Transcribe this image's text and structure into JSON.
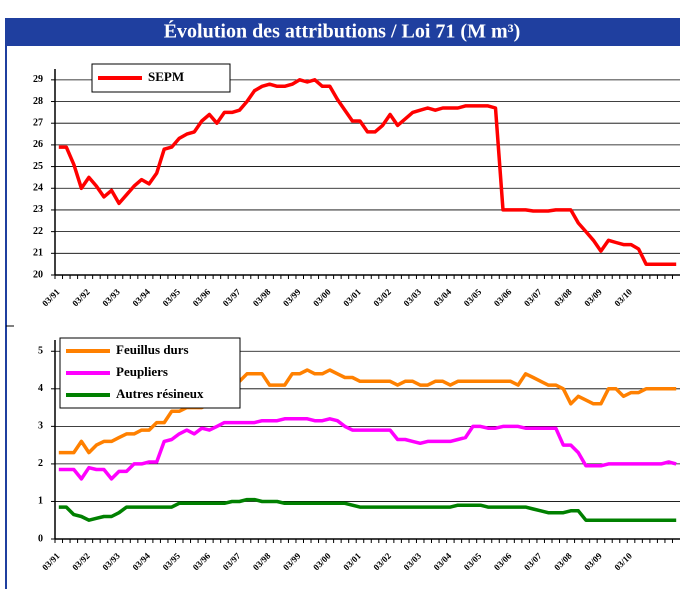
{
  "header": {
    "title": "Évolution des attributions / Loi 71 (M m³)"
  },
  "chart_data": [
    {
      "type": "line",
      "legend": "upper left",
      "grid": true,
      "categories": [
        "03/91",
        null,
        null,
        null,
        "03/92",
        null,
        null,
        null,
        "03/93",
        null,
        null,
        null,
        "03/94",
        null,
        null,
        null,
        "03/95",
        null,
        null,
        null,
        "03/96",
        null,
        null,
        null,
        "03/97",
        null,
        null,
        null,
        "03/98",
        null,
        null,
        null,
        "03/99",
        null,
        null,
        null,
        "03/00",
        null,
        null,
        null,
        "03/01",
        null,
        null,
        null,
        "03/02",
        null,
        null,
        null,
        "03/03",
        null,
        null,
        null,
        "03/04",
        null,
        null,
        null,
        "03/05",
        null,
        null,
        null,
        "03/06",
        null,
        null,
        null,
        "03/07",
        null,
        null,
        null,
        "03/08",
        null,
        null,
        null,
        "03/09",
        null,
        null,
        null,
        "03/10",
        null,
        null,
        null,
        null,
        null,
        null
      ],
      "ylim": [
        20,
        29.5
      ],
      "yticks": [
        20,
        21,
        22,
        23,
        24,
        25,
        26,
        27,
        28,
        29
      ],
      "series": [
        {
          "name": "SEPM",
          "color": "#ff0000",
          "values": [
            25.9,
            25.9,
            25.1,
            24.0,
            24.5,
            24.1,
            23.6,
            23.9,
            23.3,
            23.7,
            24.1,
            24.4,
            24.2,
            24.7,
            25.8,
            25.9,
            26.3,
            26.5,
            26.6,
            27.1,
            27.4,
            27.0,
            27.5,
            27.5,
            27.6,
            28.0,
            28.5,
            28.7,
            28.8,
            28.7,
            28.7,
            28.8,
            29.0,
            28.9,
            29.0,
            28.7,
            28.7,
            28.1,
            27.6,
            27.1,
            27.1,
            26.6,
            26.6,
            26.9,
            27.4,
            26.9,
            27.2,
            27.5,
            27.6,
            27.7,
            27.6,
            27.7,
            27.7,
            27.7,
            27.8,
            27.8,
            27.8,
            27.8,
            27.7,
            23.0,
            23.0,
            23.0,
            23.0,
            22.95,
            22.95,
            22.95,
            23.0,
            23.0,
            23.0,
            22.4,
            22.0,
            21.6,
            21.1,
            21.6,
            21.5,
            21.4,
            21.4,
            21.2,
            20.5,
            20.5,
            20.5,
            20.5,
            20.5
          ]
        }
      ]
    },
    {
      "type": "line",
      "legend": "upper left",
      "grid": true,
      "categories": [
        "03/91",
        null,
        null,
        null,
        "03/92",
        null,
        null,
        null,
        "03/93",
        null,
        null,
        null,
        "03/94",
        null,
        null,
        null,
        "03/95",
        null,
        null,
        null,
        "03/96",
        null,
        null,
        null,
        "03/97",
        null,
        null,
        null,
        "03/98",
        null,
        null,
        null,
        "03/99",
        null,
        null,
        null,
        "03/00",
        null,
        null,
        null,
        "03/01",
        null,
        null,
        null,
        "03/02",
        null,
        null,
        null,
        "03/03",
        null,
        null,
        null,
        "03/04",
        null,
        null,
        null,
        "03/05",
        null,
        null,
        null,
        "03/06",
        null,
        null,
        null,
        "03/07",
        null,
        null,
        null,
        "03/08",
        null,
        null,
        null,
        "03/09",
        null,
        null,
        null,
        "03/10",
        null,
        null,
        null,
        null,
        null,
        null
      ],
      "ylim": [
        0,
        5.3
      ],
      "yticks": [
        0,
        1,
        2,
        3,
        4,
        5
      ],
      "series": [
        {
          "name": "Feuillus durs",
          "color": "#ff8000",
          "values": [
            2.3,
            2.3,
            2.3,
            2.6,
            2.3,
            2.5,
            2.6,
            2.6,
            2.7,
            2.8,
            2.8,
            2.9,
            2.9,
            3.1,
            3.1,
            3.4,
            3.4,
            3.5,
            3.5,
            3.5,
            3.6,
            3.7,
            3.9,
            4.1,
            4.2,
            4.4,
            4.4,
            4.4,
            4.1,
            4.1,
            4.1,
            4.4,
            4.4,
            4.5,
            4.4,
            4.4,
            4.5,
            4.4,
            4.3,
            4.3,
            4.2,
            4.2,
            4.2,
            4.2,
            4.2,
            4.1,
            4.2,
            4.2,
            4.1,
            4.1,
            4.2,
            4.2,
            4.1,
            4.2,
            4.2,
            4.2,
            4.2,
            4.2,
            4.2,
            4.2,
            4.2,
            4.1,
            4.4,
            4.3,
            4.2,
            4.1,
            4.1,
            4.0,
            3.6,
            3.8,
            3.7,
            3.6,
            3.6,
            4.0,
            4.0,
            3.8,
            3.9,
            3.9,
            4.0,
            4.0,
            4.0,
            4.0,
            4.0
          ]
        },
        {
          "name": "Peupliers",
          "color": "#ff00ff",
          "values": [
            1.85,
            1.85,
            1.85,
            1.6,
            1.9,
            1.85,
            1.85,
            1.6,
            1.8,
            1.8,
            2.0,
            2.0,
            2.05,
            2.05,
            2.6,
            2.65,
            2.8,
            2.9,
            2.8,
            2.95,
            2.9,
            3.0,
            3.1,
            3.1,
            3.1,
            3.1,
            3.1,
            3.15,
            3.15,
            3.15,
            3.2,
            3.2,
            3.2,
            3.2,
            3.15,
            3.15,
            3.2,
            3.15,
            3.0,
            2.9,
            2.9,
            2.9,
            2.9,
            2.9,
            2.9,
            2.65,
            2.65,
            2.6,
            2.55,
            2.6,
            2.6,
            2.6,
            2.6,
            2.65,
            2.7,
            3.0,
            3.0,
            2.95,
            2.95,
            3.0,
            3.0,
            3.0,
            2.95,
            2.95,
            2.95,
            2.95,
            2.95,
            2.5,
            2.5,
            2.3,
            1.95,
            1.95,
            1.95,
            2.0,
            2.0,
            2.0,
            2.0,
            2.0,
            2.0,
            2.0,
            2.0,
            2.05,
            2.0
          ]
        },
        {
          "name": "Autres résineux",
          "color": "#008000",
          "values": [
            0.85,
            0.85,
            0.65,
            0.6,
            0.5,
            0.55,
            0.6,
            0.6,
            0.7,
            0.85,
            0.85,
            0.85,
            0.85,
            0.85,
            0.85,
            0.85,
            0.95,
            0.95,
            0.95,
            0.95,
            0.95,
            0.95,
            0.95,
            1.0,
            1.0,
            1.05,
            1.05,
            1.0,
            1.0,
            1.0,
            0.95,
            0.95,
            0.95,
            0.95,
            0.95,
            0.95,
            0.95,
            0.95,
            0.95,
            0.9,
            0.85,
            0.85,
            0.85,
            0.85,
            0.85,
            0.85,
            0.85,
            0.85,
            0.85,
            0.85,
            0.85,
            0.85,
            0.85,
            0.9,
            0.9,
            0.9,
            0.9,
            0.85,
            0.85,
            0.85,
            0.85,
            0.85,
            0.85,
            0.8,
            0.75,
            0.7,
            0.7,
            0.7,
            0.75,
            0.75,
            0.5,
            0.5,
            0.5,
            0.5,
            0.5,
            0.5,
            0.5,
            0.5,
            0.5,
            0.5,
            0.5,
            0.5,
            0.5
          ]
        }
      ]
    }
  ]
}
